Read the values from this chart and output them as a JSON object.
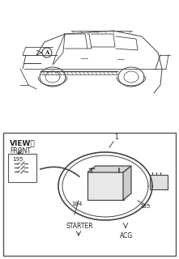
{
  "bg_color": "#f0f0f0",
  "border_color": "#333333",
  "line_color": "#444444",
  "text_color": "#222222",
  "title_view": "VIEWⒶ",
  "label_front": "FRONT",
  "label_1": "1",
  "label_184": "184",
  "label_185": "185",
  "label_195": "195",
  "label_starter": "STARTER",
  "label_acg": "ACG",
  "fig_width": 2.21,
  "fig_height": 3.2,
  "dpi": 100
}
